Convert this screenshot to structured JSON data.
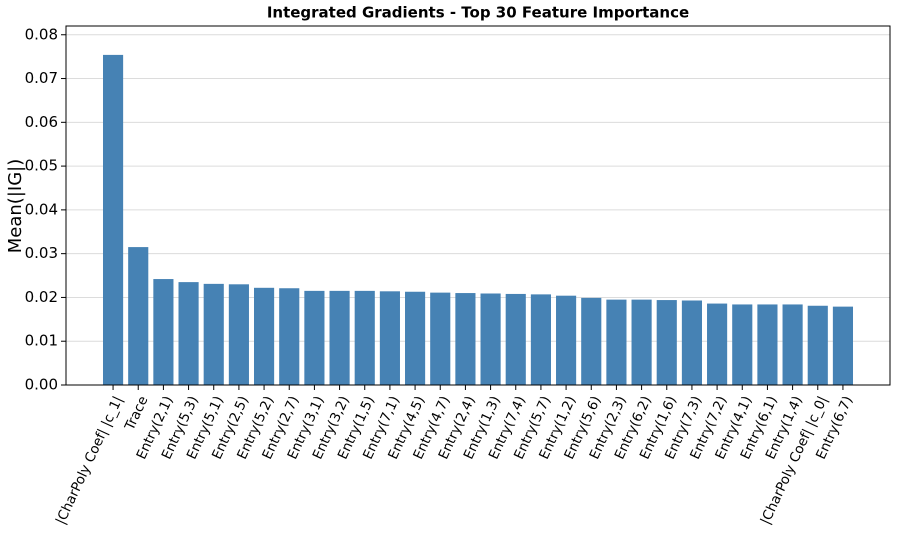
{
  "chart_data": {
    "type": "bar",
    "title": "Integrated Gradients - Top 30 Feature Importance",
    "y_label": "Mean(|IG|)",
    "categories": [
      "|CharPoly Coef| |c_1|",
      "Trace",
      "Entry(2,1)",
      "Entry(5,3)",
      "Entry(5,1)",
      "Entry(2,5)",
      "Entry(5,2)",
      "Entry(2,7)",
      "Entry(3,1)",
      "Entry(3,2)",
      "Entry(1,5)",
      "Entry(7,1)",
      "Entry(4,5)",
      "Entry(4,7)",
      "Entry(2,4)",
      "Entry(1,3)",
      "Entry(7,4)",
      "Entry(5,7)",
      "Entry(1,2)",
      "Entry(5,6)",
      "Entry(2,3)",
      "Entry(6,2)",
      "Entry(1,6)",
      "Entry(7,3)",
      "Entry(7,2)",
      "Entry(4,1)",
      "Entry(6,1)",
      "Entry(1,4)",
      "|CharPoly Coef| |c_0|",
      "Entry(6,7)"
    ],
    "values": [
      0.0754,
      0.0315,
      0.0242,
      0.0235,
      0.0231,
      0.023,
      0.0222,
      0.0221,
      0.0215,
      0.0215,
      0.0215,
      0.0214,
      0.0213,
      0.0211,
      0.021,
      0.0209,
      0.0208,
      0.0207,
      0.0204,
      0.0199,
      0.0195,
      0.0195,
      0.0194,
      0.0193,
      0.0186,
      0.0184,
      0.0184,
      0.0184,
      0.0181,
      0.0179
    ],
    "color": "#4682b4",
    "ylim": [
      0,
      0.082
    ],
    "yticks": [
      {
        "value": 0,
        "label": "0.00"
      },
      0.01,
      0.02,
      0.03,
      0.04,
      0.05,
      0.06,
      0.07,
      0.08
    ],
    "grid": true
  }
}
